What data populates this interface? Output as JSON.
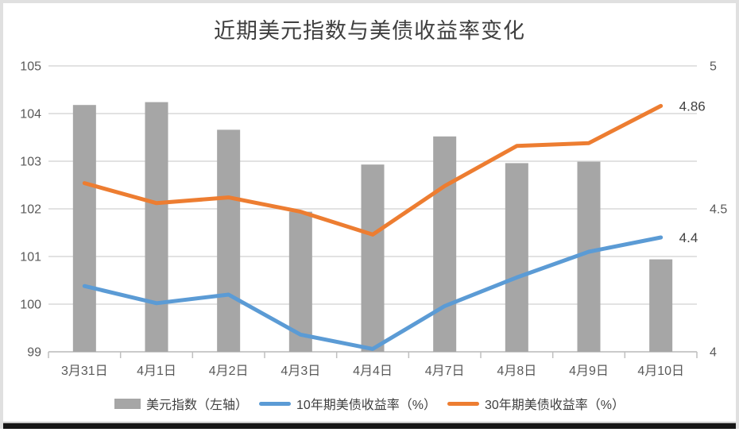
{
  "frame": {
    "border_color": "#e0e0e0",
    "bottom_bar_color": "#161616"
  },
  "chart_data": {
    "type": "combo (bar + line, dual axis)",
    "title": "近期美元指数与美债收益率变化",
    "categories": [
      "3月31日",
      "4月1日",
      "4月2日",
      "4月3日",
      "4月4日",
      "4月7日",
      "4月8日",
      "4月9日",
      "4月10日"
    ],
    "series": [
      {
        "name": "美元指数（左轴）",
        "type": "bar",
        "axis": "left",
        "color": "#a6a6a6",
        "values": [
          104.18,
          104.24,
          103.66,
          101.94,
          102.93,
          103.52,
          102.96,
          102.99,
          100.94
        ]
      },
      {
        "name": "10年期美债收益率（%）",
        "type": "line",
        "axis": "right",
        "color": "#5b9bd5",
        "values": [
          4.23,
          4.17,
          4.2,
          4.06,
          4.01,
          4.16,
          4.26,
          4.35,
          4.4
        ]
      },
      {
        "name": "30年期美债收益率（%）",
        "type": "line",
        "axis": "right",
        "color": "#ed7d31",
        "values": [
          4.59,
          4.52,
          4.54,
          4.49,
          4.41,
          4.58,
          4.72,
          4.73,
          4.86
        ]
      }
    ],
    "left_axis": {
      "min": 99,
      "max": 105,
      "ticks": [
        105,
        104,
        103,
        102,
        101,
        100,
        99
      ]
    },
    "right_axis": {
      "min": 4,
      "max": 5,
      "ticks": [
        5,
        4.5,
        4
      ],
      "tick_labels": [
        "5",
        "4.5",
        "4"
      ]
    },
    "data_labels": [
      {
        "series_index": 2,
        "point_index": 8,
        "text": "4.86"
      },
      {
        "series_index": 1,
        "point_index": 8,
        "text": "4.4"
      }
    ],
    "grid": true,
    "legend_position": "bottom",
    "colors": {
      "gridline": "#d9d9d9",
      "axis_line": "#bfbfbf",
      "tick_text": "#595959",
      "title_text": "#3f3f3f",
      "label_text": "#404040"
    }
  }
}
